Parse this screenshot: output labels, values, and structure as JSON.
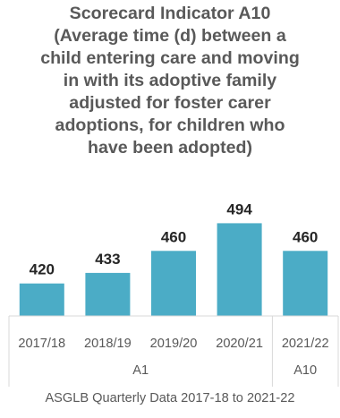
{
  "chart_data": {
    "type": "bar",
    "title_lines": [
      "Scorecard Indicator A10",
      "(Average time (d) between a",
      "child entering care and moving",
      "in with its adoptive family",
      "adjusted for foster carer",
      "adoptions, for children who",
      "have been adopted)"
    ],
    "categories": [
      "2017/18",
      "2018/19",
      "2019/20",
      "2020/21",
      "2021/22"
    ],
    "values": [
      420,
      433,
      460,
      494,
      460
    ],
    "data_labels": [
      "420",
      "433",
      "460",
      "494",
      "460"
    ],
    "groups": [
      {
        "label": "A1",
        "categories": [
          "2017/18",
          "2018/19",
          "2019/20",
          "2020/21"
        ]
      },
      {
        "label": "A10",
        "categories": [
          "2021/22"
        ]
      }
    ],
    "bar_color": "#4BACC6",
    "ylim": [
      380,
      500
    ],
    "grid": false,
    "legend": "none",
    "source_note": "ASGLB Quarterly Data 2017-18 to 2021-22"
  }
}
